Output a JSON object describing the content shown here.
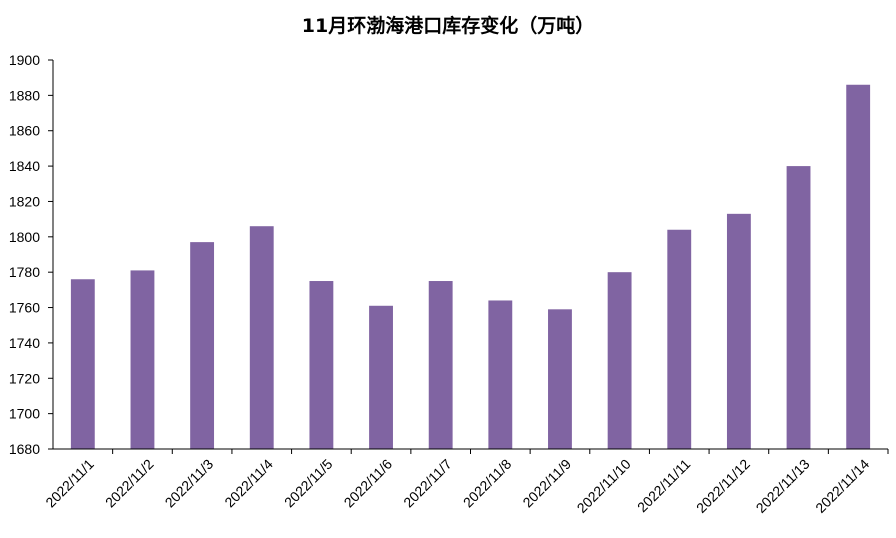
{
  "chart_data": {
    "type": "bar",
    "title": "11月环渤海港口库存变化（万吨）",
    "xlabel": "",
    "ylabel": "",
    "categories": [
      "2022/11/1",
      "2022/11/2",
      "2022/11/3",
      "2022/11/4",
      "2022/11/5",
      "2022/11/6",
      "2022/11/7",
      "2022/11/8",
      "2022/11/9",
      "2022/11/10",
      "2022/11/11",
      "2022/11/12",
      "2022/11/13",
      "2022/11/14"
    ],
    "values": [
      1776,
      1781,
      1797,
      1806,
      1775,
      1761,
      1775,
      1764,
      1759,
      1780,
      1804,
      1813,
      1840,
      1886
    ],
    "ylim": [
      1680,
      1900
    ],
    "yticks": [
      1680,
      1700,
      1720,
      1740,
      1760,
      1780,
      1800,
      1820,
      1840,
      1860,
      1880,
      1900
    ],
    "grid": false,
    "legend": "none",
    "bar_color": "#8064a2"
  }
}
